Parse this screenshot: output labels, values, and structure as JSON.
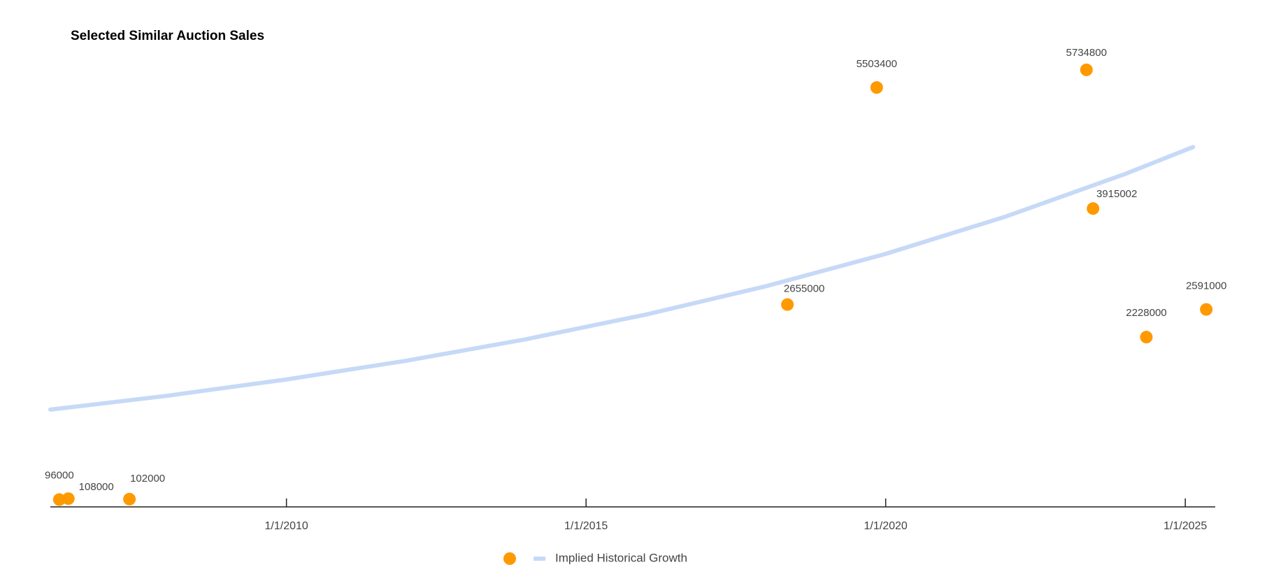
{
  "chart_data": {
    "type": "scatter",
    "title": "Selected Similar Auction Sales",
    "xlim": [
      2006.06,
      2025.5
    ],
    "xticks": [
      {
        "value": 2010,
        "label": "1/1/2010"
      },
      {
        "value": 2015,
        "label": "1/1/2015"
      },
      {
        "value": 2020,
        "label": "1/1/2020"
      },
      {
        "value": 2025,
        "label": "1/1/2025"
      }
    ],
    "ylim": [
      0,
      6000000
    ],
    "series": [
      {
        "color": "#ff9900",
        "x": [
          2006.21,
          2006.36,
          2007.38,
          2018.36,
          2019.85,
          2023.35,
          2023.46,
          2024.35,
          2025.35
        ],
        "values": [
          96000,
          108000,
          102000,
          2655000,
          5503400,
          5734800,
          3915002,
          2228000,
          2591000
        ]
      },
      {
        "name": "Implied Historical Growth",
        "type": "line",
        "color": "#c6d9f7",
        "x": [
          2006.06,
          2008,
          2010,
          2012,
          2014,
          2016,
          2018,
          2020,
          2022,
          2024,
          2025.13
        ],
        "values": [
          1276000,
          1457000,
          1672000,
          1918000,
          2200000,
          2524000,
          2895000,
          3320000,
          3809000,
          4370000,
          4722000
        ]
      }
    ]
  }
}
